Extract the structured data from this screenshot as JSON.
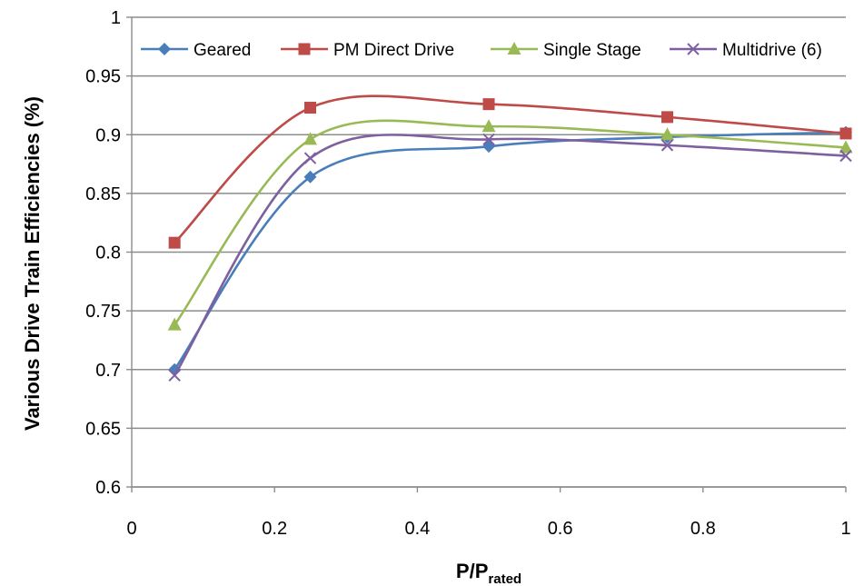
{
  "chart_data": {
    "type": "line",
    "title": "",
    "xlabel_main": "P/P",
    "xlabel_sub": "rated",
    "ylabel": "Various Drive Train Efficiencies (%)",
    "xlim": [
      0,
      1
    ],
    "ylim": [
      0.6,
      1
    ],
    "xticks": [
      "0",
      "0.2",
      "0.4",
      "0.6",
      "0.8",
      "1"
    ],
    "yticks": [
      "0.6",
      "0.65",
      "0.7",
      "0.75",
      "0.8",
      "0.85",
      "0.9",
      "0.95",
      "1"
    ],
    "grid": "horizontal",
    "legend_position": "top",
    "x": [
      0.06,
      0.25,
      0.5,
      0.75,
      1.0
    ],
    "series": [
      {
        "name": "Geared",
        "values": [
          0.7,
          0.864,
          0.89,
          0.898,
          0.902
        ],
        "color": "#4a7ebb",
        "marker": "diamond"
      },
      {
        "name": "PM Direct Drive",
        "values": [
          0.808,
          0.923,
          0.926,
          0.915,
          0.901
        ],
        "color": "#be4b48",
        "marker": "square"
      },
      {
        "name": "Single Stage",
        "values": [
          0.738,
          0.896,
          0.907,
          0.9,
          0.889
        ],
        "color": "#98b954",
        "marker": "triangle"
      },
      {
        "name": "Multidrive (6)",
        "values": [
          0.695,
          0.88,
          0.896,
          0.891,
          0.882
        ],
        "color": "#7d60a0",
        "marker": "x"
      }
    ]
  }
}
